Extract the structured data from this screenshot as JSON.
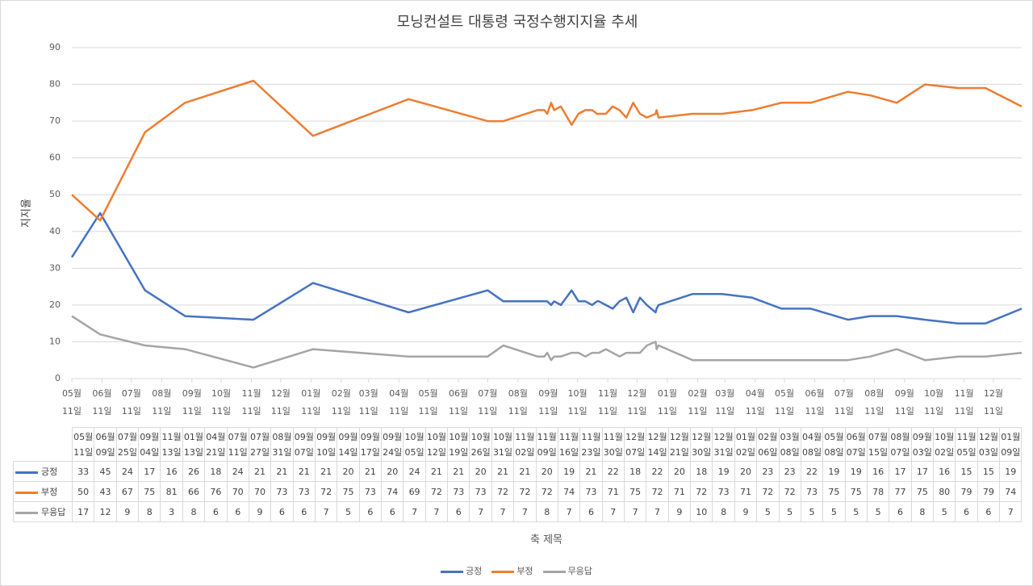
{
  "chart_data": {
    "type": "line",
    "title": "모닝컨설트 대통령 국정수행지지율 추세",
    "ylabel": "지지율",
    "xlabel": "축 제목",
    "x": [
      "05월 11일",
      "06월 09일",
      "07월 25일",
      "09월 04일",
      "11월 13일",
      "01월 13일",
      "04월 21일",
      "07월 11일",
      "07월 27일",
      "08월 31일",
      "09월 07일",
      "09월 10일",
      "09월 14일",
      "09월 17일",
      "09월 24일",
      "10월 05일",
      "10월 12일",
      "10월 19일",
      "10월 26일",
      "10월 31일",
      "11월 02일",
      "11월 09일",
      "11월 16일",
      "11월 23일",
      "11월 30일",
      "12월 07일",
      "12월 14일",
      "12월 21일",
      "12월 30일",
      "12월 31일",
      "01월 02일",
      "02월 06일",
      "03월 08일",
      "04월 08일",
      "05월 08일",
      "06월 07일",
      "07월 15일",
      "08월 07일",
      "09월 03일",
      "10월 02일",
      "11월 05일",
      "12월 03일",
      "01월 09일"
    ],
    "series": [
      {
        "name": "긍정",
        "color": "#4472c4",
        "values": [
          33,
          45,
          24,
          17,
          16,
          26,
          18,
          24,
          21,
          21,
          21,
          21,
          20,
          21,
          20,
          24,
          21,
          21,
          20,
          21,
          21,
          20,
          19,
          21,
          22,
          18,
          22,
          20,
          18,
          19,
          20,
          23,
          23,
          22,
          19,
          19,
          16,
          17,
          17,
          16,
          15,
          15,
          19
        ]
      },
      {
        "name": "부정",
        "color": "#ed7d31",
        "values": [
          50,
          43,
          67,
          75,
          81,
          66,
          76,
          70,
          70,
          73,
          73,
          72,
          75,
          73,
          74,
          69,
          72,
          73,
          73,
          72,
          72,
          72,
          74,
          73,
          71,
          75,
          72,
          71,
          72,
          73,
          71,
          72,
          72,
          73,
          75,
          75,
          78,
          77,
          75,
          80,
          79,
          79,
          74
        ]
      },
      {
        "name": "무응답",
        "color": "#a5a5a5",
        "values": [
          17,
          12,
          9,
          8,
          3,
          8,
          6,
          6,
          9,
          6,
          6,
          7,
          5,
          6,
          6,
          7,
          7,
          6,
          7,
          7,
          7,
          8,
          7,
          6,
          7,
          7,
          7,
          9,
          10,
          8,
          9,
          5,
          5,
          5,
          5,
          5,
          5,
          6,
          8,
          5,
          6,
          6,
          7
        ]
      }
    ],
    "xlim": [
      "05월 11일",
      "01월 09일"
    ],
    "xticks": [
      "05월 11일",
      "06월 11일",
      "07월 11일",
      "08월 11일",
      "09월 11일",
      "10월 11일",
      "11월 11일",
      "12월 11일",
      "01월 11일",
      "02월 11일",
      "03월 11일",
      "04월 11일",
      "05월 11일",
      "06월 11일",
      "07월 11일",
      "08월 11일",
      "09월 11일",
      "10월 11일",
      "11월 11일",
      "12월 11일",
      "01월 11일",
      "02월 11일",
      "03월 11일",
      "04월 11일",
      "05월 11일",
      "06월 11일",
      "07월 11일",
      "08월 11일",
      "09월 11일",
      "10월 11일",
      "11월 11일",
      "12월 11일"
    ],
    "ylim": [
      0,
      90
    ],
    "yticks": [
      0,
      10,
      20,
      30,
      40,
      50,
      60,
      70,
      80,
      90
    ],
    "grid": true,
    "legend": "bottom"
  }
}
